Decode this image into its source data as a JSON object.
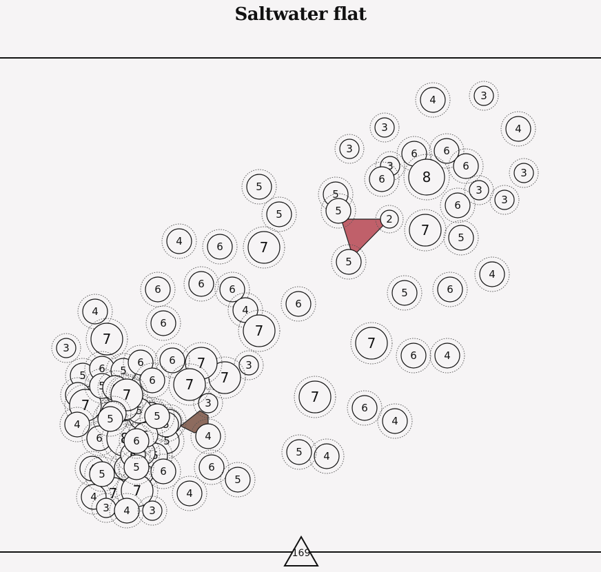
{
  "title": "Saltwater flat",
  "score": "169",
  "colors": {
    "background": "#f6f4f5",
    "node_fill": "#f6f4f5",
    "node_stroke": "#111111",
    "polygon_red": "#c0606a",
    "polygon_brown": "#8d6b5e"
  },
  "nodes": [
    {
      "v": "4"
    },
    {
      "v": "3"
    },
    {
      "v": "3"
    },
    {
      "v": "4"
    },
    {
      "v": "3"
    },
    {
      "v": "6"
    },
    {
      "v": "6"
    },
    {
      "v": "6"
    },
    {
      "v": "3"
    },
    {
      "v": "8"
    },
    {
      "v": "6"
    },
    {
      "v": "3"
    },
    {
      "v": "3"
    },
    {
      "v": "3"
    },
    {
      "v": "5"
    },
    {
      "v": "5"
    },
    {
      "v": "6"
    },
    {
      "v": "2"
    },
    {
      "v": "7"
    },
    {
      "v": "5"
    },
    {
      "v": "5"
    },
    {
      "v": "5"
    },
    {
      "v": "4"
    },
    {
      "v": "6"
    },
    {
      "v": "7"
    },
    {
      "v": "5"
    },
    {
      "v": "6"
    },
    {
      "v": "4"
    },
    {
      "v": "6"
    },
    {
      "v": "6"
    },
    {
      "v": "6"
    },
    {
      "v": "4"
    },
    {
      "v": "6"
    },
    {
      "v": "4"
    },
    {
      "v": "7"
    },
    {
      "v": "5"
    },
    {
      "v": "6"
    },
    {
      "v": "7"
    },
    {
      "v": "6"
    },
    {
      "v": "4"
    },
    {
      "v": "3"
    },
    {
      "v": "6"
    },
    {
      "v": "7"
    },
    {
      "v": "7"
    },
    {
      "v": "3"
    },
    {
      "v": "7"
    },
    {
      "v": "3"
    },
    {
      "v": "7"
    },
    {
      "v": "6"
    },
    {
      "v": "4"
    },
    {
      "v": "4"
    },
    {
      "v": "5"
    },
    {
      "v": "4"
    },
    {
      "v": "6"
    },
    {
      "v": "5"
    },
    {
      "v": "4"
    },
    {
      "v": "5"
    },
    {
      "v": "6"
    },
    {
      "v": "5"
    },
    {
      "v": "4"
    },
    {
      "v": "7"
    },
    {
      "v": "4"
    },
    {
      "v": "6"
    },
    {
      "v": "8"
    },
    {
      "v": "6"
    },
    {
      "v": "5"
    },
    {
      "v": "4"
    },
    {
      "v": "6"
    },
    {
      "v": "5"
    },
    {
      "v": "7"
    },
    {
      "v": "7"
    },
    {
      "v": "4"
    },
    {
      "v": "3"
    },
    {
      "v": "4"
    },
    {
      "v": "3"
    },
    {
      "v": "6"
    },
    {
      "v": "5"
    },
    {
      "v": "7"
    },
    {
      "v": "6"
    },
    {
      "v": "6"
    },
    {
      "v": "3"
    },
    {
      "v": "6"
    },
    {
      "v": "5"
    },
    {
      "v": "6"
    },
    {
      "v": "5"
    },
    {
      "v": "5"
    },
    {
      "v": "3"
    },
    {
      "v": "6"
    },
    {
      "v": "5"
    },
    {
      "v": "6"
    },
    {
      "v": "5"
    },
    {
      "v": "6"
    },
    {
      "v": "7"
    },
    {
      "v": "5"
    },
    {
      "v": "6"
    },
    {
      "v": "5"
    },
    {
      "v": "6"
    },
    {
      "v": "5"
    },
    {
      "v": "5"
    },
    {
      "v": "6"
    },
    {
      "v": "5"
    },
    {
      "v": "6"
    }
  ]
}
